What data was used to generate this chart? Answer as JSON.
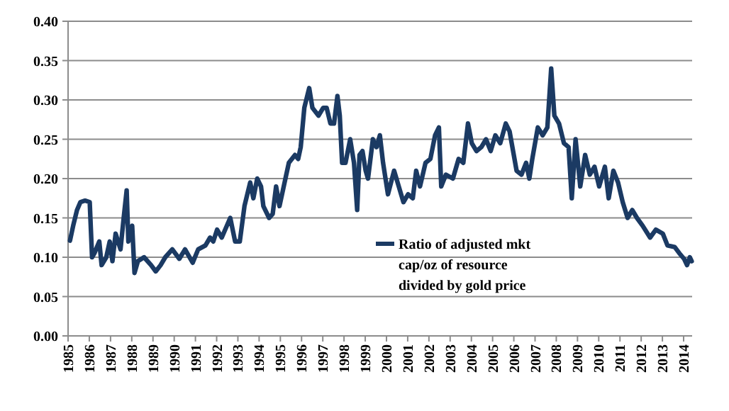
{
  "chart_data": {
    "type": "line",
    "xlim": [
      1985,
      2014.4
    ],
    "xticks": [
      1985,
      1986,
      1987,
      1988,
      1989,
      1990,
      1991,
      1992,
      1993,
      1994,
      1995,
      1996,
      1997,
      1998,
      1999,
      2000,
      2001,
      2002,
      2003,
      2004,
      2005,
      2006,
      2007,
      2008,
      2009,
      2010,
      2011,
      2012,
      2013,
      2014
    ],
    "ylim": [
      0,
      0.4
    ],
    "yticks": [
      {
        "value": 0,
        "label": "0.00"
      },
      {
        "value": 0.05,
        "label": "0.05"
      },
      {
        "value": 0.1,
        "label": "0.10"
      },
      {
        "value": 0.15,
        "label": "0.15"
      },
      {
        "value": 0.2,
        "label": "0.20"
      },
      {
        "value": 0.25,
        "label": "0.25"
      },
      {
        "value": 0.3,
        "label": "0.30"
      },
      {
        "value": 0.35,
        "label": "0.35"
      },
      {
        "value": 0.4,
        "label": "0.40"
      }
    ],
    "grid": "y",
    "legend": "right",
    "marker": "none",
    "line_style": "solid",
    "series": [
      {
        "name": "Ratio of adjusted mkt cap/oz of resource divided by gold price",
        "color": "#1b3a63",
        "x": [
          1985.09,
          1985.24,
          1985.42,
          1985.58,
          1985.8,
          1986.02,
          1986.13,
          1986.24,
          1986.47,
          1986.58,
          1986.8,
          1986.96,
          1987.09,
          1987.24,
          1987.47,
          1987.62,
          1987.76,
          1987.84,
          1988.02,
          1988.13,
          1988.29,
          1988.58,
          1988.91,
          1989.13,
          1989.36,
          1989.58,
          1989.91,
          1990.24,
          1990.51,
          1990.87,
          1991.13,
          1991.47,
          1991.69,
          1991.84,
          1992.02,
          1992.24,
          1992.64,
          1992.87,
          1993.09,
          1993.31,
          1993.58,
          1993.73,
          1993.91,
          1994.09,
          1994.2,
          1994.47,
          1994.64,
          1994.8,
          1994.96,
          1995.24,
          1995.4,
          1995.69,
          1995.84,
          1995.96,
          1996.13,
          1996.36,
          1996.51,
          1996.8,
          1997.02,
          1997.18,
          1997.36,
          1997.53,
          1997.69,
          1997.8,
          1997.91,
          1998.07,
          1998.29,
          1998.47,
          1998.62,
          1998.73,
          1998.87,
          1999.02,
          1999.13,
          1999.36,
          1999.53,
          1999.69,
          1999.84,
          2000.07,
          2000.36,
          2000.58,
          2000.8,
          2001.02,
          2001.24,
          2001.4,
          2001.58,
          2001.84,
          2002.07,
          2002.29,
          2002.47,
          2002.58,
          2002.8,
          2003.13,
          2003.4,
          2003.62,
          2003.84,
          2004.02,
          2004.24,
          2004.47,
          2004.69,
          2004.91,
          2005.13,
          2005.36,
          2005.62,
          2005.8,
          2006.13,
          2006.36,
          2006.58,
          2006.73,
          2006.87,
          2007.13,
          2007.36,
          2007.58,
          2007.76,
          2007.91,
          2008.13,
          2008.36,
          2008.58,
          2008.73,
          2008.91,
          2009.13,
          2009.36,
          2009.58,
          2009.8,
          2010.02,
          2010.29,
          2010.47,
          2010.69,
          2010.91,
          2011.13,
          2011.36,
          2011.58,
          2011.8,
          2012.07,
          2012.42,
          2012.69,
          2013.02,
          2013.24,
          2013.58,
          2013.8,
          2014.02,
          2014.16,
          2014.29,
          2014.38
        ],
        "values": [
          0.121,
          0.14,
          0.16,
          0.17,
          0.172,
          0.17,
          0.1,
          0.105,
          0.12,
          0.09,
          0.1,
          0.12,
          0.095,
          0.13,
          0.11,
          0.15,
          0.185,
          0.12,
          0.14,
          0.08,
          0.095,
          0.1,
          0.09,
          0.082,
          0.09,
          0.1,
          0.11,
          0.098,
          0.11,
          0.093,
          0.11,
          0.115,
          0.125,
          0.12,
          0.135,
          0.125,
          0.15,
          0.12,
          0.12,
          0.165,
          0.195,
          0.175,
          0.2,
          0.19,
          0.165,
          0.15,
          0.155,
          0.19,
          0.165,
          0.2,
          0.22,
          0.23,
          0.225,
          0.24,
          0.29,
          0.315,
          0.29,
          0.28,
          0.29,
          0.29,
          0.27,
          0.27,
          0.305,
          0.28,
          0.22,
          0.22,
          0.25,
          0.22,
          0.16,
          0.23,
          0.235,
          0.21,
          0.2,
          0.25,
          0.24,
          0.255,
          0.22,
          0.18,
          0.21,
          0.19,
          0.17,
          0.18,
          0.175,
          0.21,
          0.19,
          0.22,
          0.225,
          0.255,
          0.265,
          0.19,
          0.205,
          0.2,
          0.225,
          0.22,
          0.27,
          0.245,
          0.235,
          0.24,
          0.25,
          0.235,
          0.255,
          0.245,
          0.27,
          0.26,
          0.21,
          0.205,
          0.22,
          0.2,
          0.225,
          0.265,
          0.255,
          0.265,
          0.34,
          0.28,
          0.27,
          0.245,
          0.24,
          0.175,
          0.25,
          0.19,
          0.23,
          0.205,
          0.215,
          0.19,
          0.215,
          0.175,
          0.21,
          0.195,
          0.17,
          0.15,
          0.16,
          0.15,
          0.14,
          0.125,
          0.135,
          0.13,
          0.115,
          0.113,
          0.105,
          0.098,
          0.09,
          0.1,
          0.095
        ]
      }
    ]
  }
}
